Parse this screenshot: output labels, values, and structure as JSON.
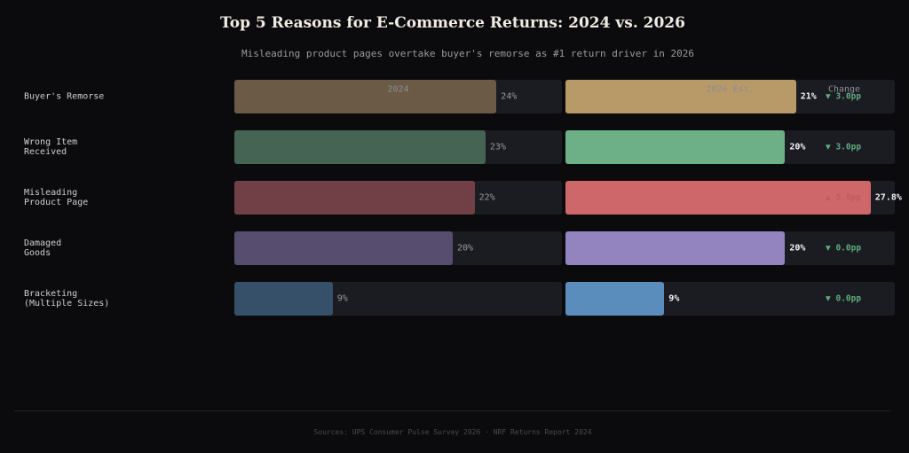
{
  "chart_data": {
    "type": "bar",
    "title": "Top 5 Reasons for E-Commerce Returns: 2024 vs. 2026",
    "subtitle": "Misleading product pages overtake buyer's remorse as #1 return driver in 2026",
    "categories": [
      "Buyer's Remorse",
      "Wrong Item\nReceived",
      "Misleading\nProduct Page",
      "Damaged\nGoods",
      "Bracketing\n(Multiple Sizes)"
    ],
    "xlim": [
      0,
      30
    ],
    "series": [
      {
        "name": "2024",
        "colors": [
          "#6b5a45",
          "#466453",
          "#714046",
          "#574d6e",
          "#36506a"
        ],
        "values": [
          24,
          23,
          22,
          20,
          9
        ],
        "value_labels": [
          "24%",
          "23%",
          "22%",
          "20%",
          "9%"
        ]
      },
      {
        "name": "2026 Est.",
        "colors": [
          "#b89a68",
          "#6db087",
          "#cd6769",
          "#9384c0",
          "#5a8dbb"
        ],
        "values": [
          21,
          20,
          27.8,
          20,
          9
        ],
        "value_labels": [
          "21%",
          "20%",
          "27.8%",
          "20%",
          "9%"
        ]
      }
    ],
    "change_header": "Change",
    "change_labels": [
      "▼ 3.0pp",
      "▼ 3.0pp",
      "▲ 5.8pp",
      "▼ 0.0pp",
      "▼ 0.0pp"
    ],
    "change_colors": [
      "#5fae7d",
      "#5fae7d",
      "#c25b5e",
      "#5fae7d",
      "#5fae7d"
    ],
    "footer": "Sources: UPS Consumer Pulse Survey 2026 · NRF Returns Report 2024"
  }
}
